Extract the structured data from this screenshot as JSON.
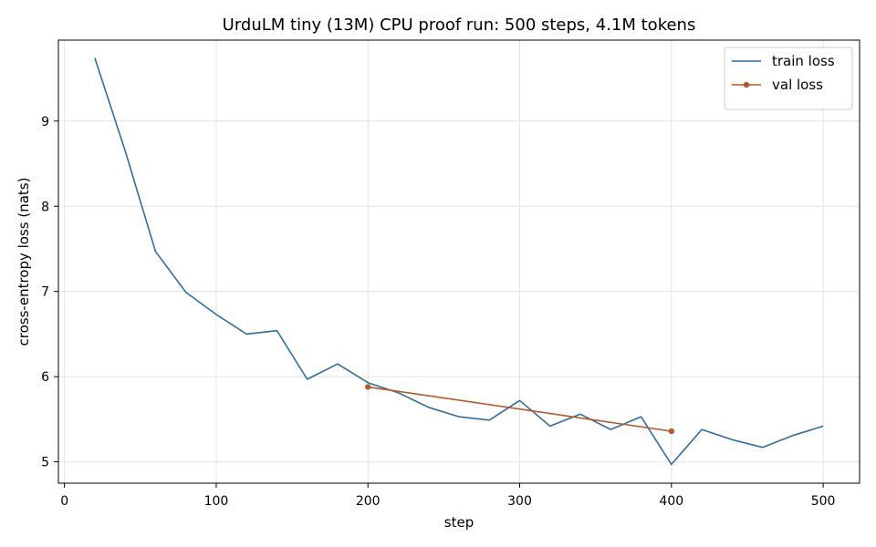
{
  "chart_data": {
    "type": "line",
    "title": "UrduLM tiny (13M) CPU proof run: 500 steps, 4.1M tokens",
    "xlabel": "step",
    "ylabel": "cross-entropy loss (nats)",
    "xlim": [
      -4,
      524
    ],
    "ylim": [
      4.75,
      9.95
    ],
    "xticks": [
      0,
      100,
      200,
      300,
      400,
      500
    ],
    "yticks": [
      5,
      6,
      7,
      8,
      9
    ],
    "grid": true,
    "legend_position": "top-right",
    "series": [
      {
        "name": "train loss",
        "color": "#2f6ea5",
        "marker": "none",
        "x": [
          20,
          40,
          60,
          80,
          100,
          120,
          140,
          160,
          180,
          200,
          220,
          240,
          260,
          280,
          300,
          320,
          340,
          360,
          380,
          400,
          420,
          440,
          460,
          480,
          500
        ],
        "y": [
          9.74,
          8.65,
          7.47,
          6.99,
          6.73,
          6.5,
          6.54,
          5.97,
          6.15,
          5.93,
          5.81,
          5.64,
          5.53,
          5.49,
          5.72,
          5.42,
          5.56,
          5.38,
          5.53,
          4.97,
          5.38,
          5.26,
          5.17,
          5.31,
          5.42
        ]
      },
      {
        "name": "val loss",
        "color": "#b5592a",
        "marker": "circle",
        "x": [
          200,
          400
        ],
        "y": [
          5.88,
          5.36
        ]
      }
    ]
  }
}
